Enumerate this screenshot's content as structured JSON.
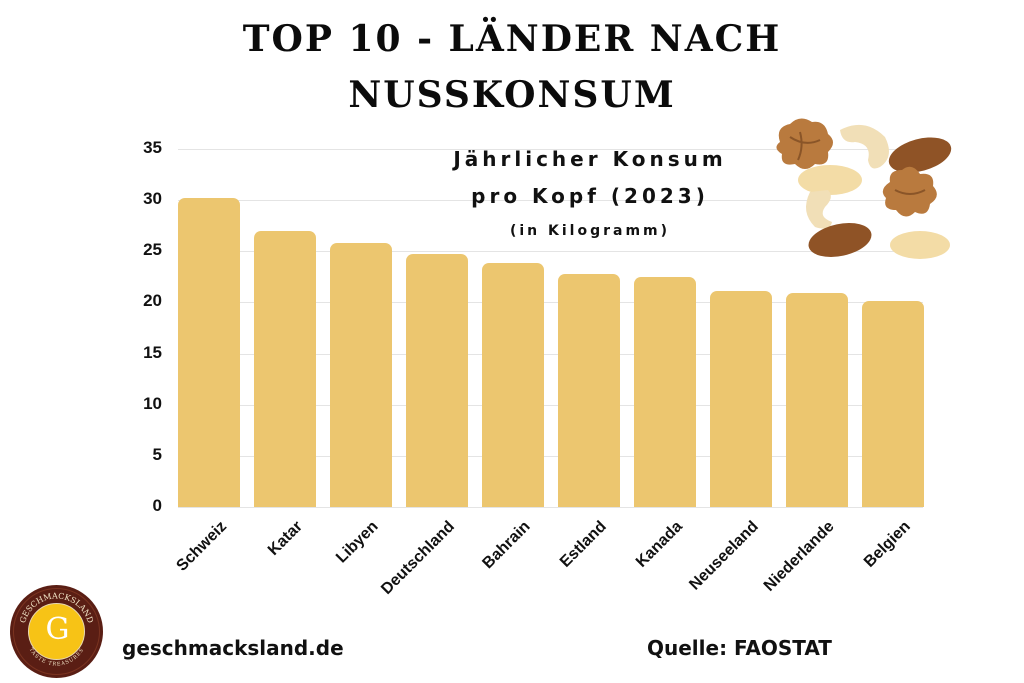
{
  "title": {
    "line1": "TOP 10 - LÄNDER NACH",
    "line2": "NUSSKONSUM"
  },
  "subtitle": {
    "line1": "Jährlicher Konsum",
    "line2": "pro Kopf (2023)",
    "unit": "(in Kilogramm)"
  },
  "footer": {
    "website": "geschmacksland.de",
    "source": "Quelle: FAOSTAT"
  },
  "logo": {
    "letter": "G",
    "ring_top": "GESCHMACKSLAND",
    "ring_bottom": "TASTE TREASURES"
  },
  "decoration": {
    "image": "mixed-nuts-illustration"
  },
  "colors": {
    "bar": "#ecc66f",
    "grid": "#e4e4e4",
    "logo_outer": "#5a1e14",
    "logo_inner": "#f7c316"
  },
  "y_ticks": [
    "35",
    "30",
    "25",
    "20",
    "15",
    "10",
    "5",
    "0"
  ],
  "chart_data": {
    "type": "bar",
    "title": "TOP 10 - LÄNDER NACH NUSSKONSUM",
    "subtitle": "Jährlicher Konsum pro Kopf (2023) (in Kilogramm)",
    "xlabel": "",
    "ylabel": "",
    "categories": [
      "Schweiz",
      "Katar",
      "Libyen",
      "Deutschland",
      "Bahrain",
      "Estland",
      "Kanada",
      "Neuseeland",
      "Niederlande",
      "Belgien"
    ],
    "values": [
      30.2,
      27.0,
      25.8,
      24.7,
      23.9,
      22.8,
      22.5,
      21.1,
      20.9,
      20.1
    ],
    "ylim": [
      0,
      35
    ],
    "yticks": [
      0,
      5,
      10,
      15,
      20,
      25,
      30,
      35
    ],
    "grid": true,
    "legend": "none",
    "source": "FAOSTAT"
  }
}
